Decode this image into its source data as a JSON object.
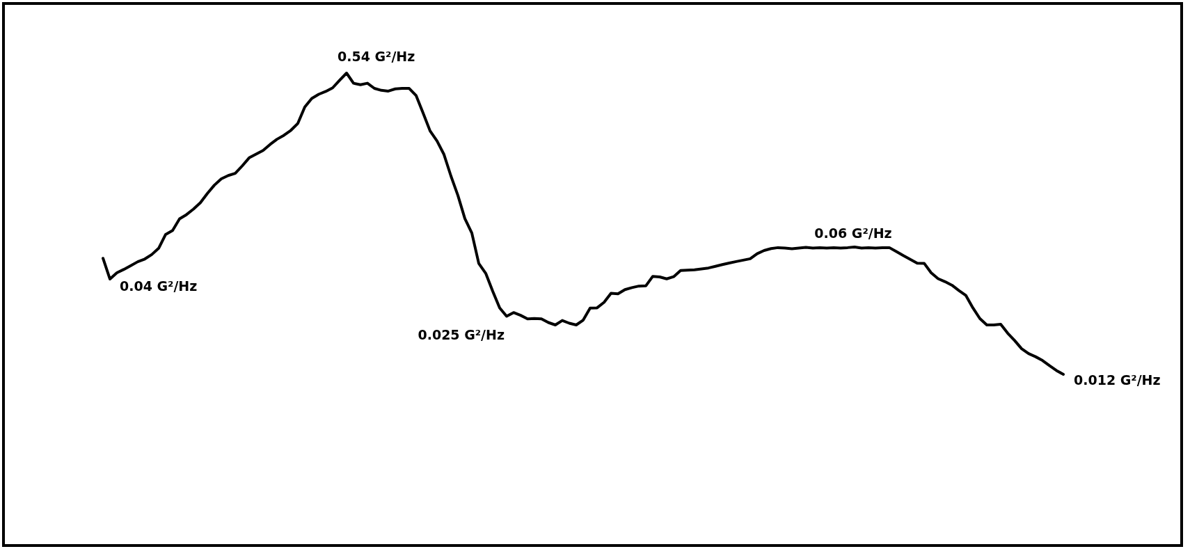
{
  "chart_data": {
    "type": "line",
    "log": true,
    "color": "#000000",
    "categories": [
      null,
      null,
      null,
      null,
      null,
      null,
      null,
      null,
      null,
      null,
      null,
      null,
      null,
      null,
      null,
      null,
      null,
      null,
      null,
      null,
      null,
      null,
      null,
      null,
      null,
      null,
      null,
      null,
      null,
      null,
      null,
      null,
      null,
      null,
      null,
      null,
      null,
      null,
      null,
      null,
      null,
      null,
      null,
      null,
      null,
      null,
      null,
      null,
      null,
      null,
      null,
      null,
      null,
      null,
      null,
      null,
      null,
      null,
      null,
      null,
      null,
      null,
      null,
      null,
      null,
      null,
      null,
      null,
      null,
      null,
      null,
      null,
      null,
      null,
      null,
      null,
      null,
      null,
      null,
      null,
      null,
      null,
      null,
      null,
      null,
      null,
      null,
      null,
      null,
      null,
      null,
      null,
      null,
      null,
      null,
      null,
      null,
      null,
      null,
      null,
      null,
      null,
      null,
      null,
      null,
      null,
      null,
      null,
      null,
      null,
      null,
      null,
      null,
      null,
      null,
      null,
      null,
      null,
      null,
      null,
      null,
      null,
      null,
      null,
      null,
      null,
      null,
      null,
      null,
      null,
      null,
      null,
      null,
      null,
      null,
      null,
      null,
      null,
      null
    ],
    "values": [
      0.052,
      0.04,
      0.0433,
      0.0452,
      0.0474,
      0.0498,
      0.0515,
      0.0545,
      0.059,
      0.0703,
      0.0739,
      0.0856,
      0.0903,
      0.0968,
      0.105,
      0.118,
      0.131,
      0.142,
      0.148,
      0.152,
      0.167,
      0.185,
      0.194,
      0.203,
      0.219,
      0.234,
      0.246,
      0.262,
      0.286,
      0.352,
      0.392,
      0.413,
      0.428,
      0.448,
      0.493,
      0.54,
      0.475,
      0.466,
      0.475,
      0.445,
      0.434,
      0.43,
      0.442,
      0.445,
      0.445,
      0.406,
      0.326,
      0.26,
      0.229,
      0.193,
      0.147,
      0.115,
      0.0859,
      0.0716,
      0.0487,
      0.043,
      0.0343,
      0.0278,
      0.025,
      0.0262,
      0.0253,
      0.0242,
      0.0243,
      0.0242,
      0.0231,
      0.0224,
      0.0237,
      0.0229,
      0.0224,
      0.0238,
      0.0277,
      0.0278,
      0.0298,
      0.0334,
      0.0332,
      0.035,
      0.0359,
      0.0366,
      0.0367,
      0.0414,
      0.0411,
      0.0401,
      0.0412,
      0.0446,
      0.0448,
      0.045,
      0.0455,
      0.046,
      0.047,
      0.048,
      0.049,
      0.0499,
      0.0508,
      0.0517,
      0.0551,
      0.0574,
      0.0588,
      0.0595,
      0.0592,
      0.0587,
      0.0592,
      0.0597,
      0.0592,
      0.0595,
      0.0592,
      0.0595,
      0.0592,
      0.0595,
      0.06,
      0.0592,
      0.0595,
      0.0592,
      0.0595,
      0.0595,
      0.0566,
      0.0538,
      0.0513,
      0.0489,
      0.0488,
      0.0433,
      0.0402,
      0.0387,
      0.037,
      0.0346,
      0.0325,
      0.0278,
      0.0243,
      0.0224,
      0.0224,
      0.0226,
      0.0202,
      0.0184,
      0.0166,
      0.0156,
      0.015,
      0.0143,
      0.0134,
      0.0126,
      0.012
    ],
    "value_labels": [
      null,
      "0.04 G²/Hz",
      null,
      null,
      null,
      null,
      null,
      null,
      null,
      null,
      null,
      null,
      null,
      null,
      null,
      null,
      null,
      null,
      null,
      null,
      null,
      null,
      null,
      null,
      null,
      null,
      null,
      null,
      null,
      null,
      null,
      null,
      null,
      null,
      null,
      "0.54 G²/Hz",
      null,
      null,
      null,
      null,
      null,
      null,
      null,
      null,
      null,
      null,
      null,
      null,
      null,
      null,
      null,
      null,
      null,
      null,
      null,
      null,
      null,
      null,
      "0.025 G²/Hz",
      null,
      null,
      null,
      null,
      null,
      null,
      null,
      null,
      null,
      null,
      null,
      null,
      null,
      null,
      null,
      null,
      null,
      null,
      null,
      null,
      null,
      null,
      null,
      null,
      null,
      null,
      null,
      null,
      null,
      null,
      null,
      null,
      null,
      null,
      null,
      null,
      null,
      null,
      null,
      null,
      null,
      null,
      null,
      null,
      null,
      null,
      null,
      null,
      null,
      "0.06 G²/Hz",
      null,
      null,
      null,
      null,
      null,
      null,
      null,
      null,
      null,
      null,
      null,
      null,
      null,
      null,
      null,
      null,
      null,
      null,
      null,
      null,
      null,
      null,
      null,
      null,
      null,
      null,
      null,
      null,
      null,
      "0.012 G²/Hz"
    ]
  }
}
